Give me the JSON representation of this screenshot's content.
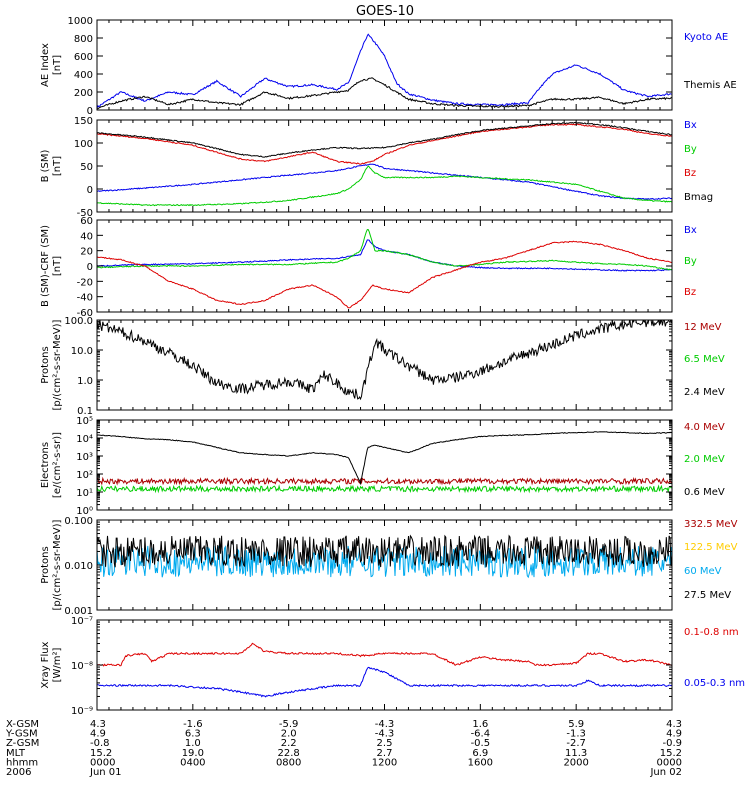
{
  "title": "GOES-10",
  "chart_data": [
    {
      "type": "line",
      "ylabel_lines": [
        "AE Index",
        "[nT]"
      ],
      "ylim": [
        0,
        1000
      ],
      "scale": "linear",
      "yticks": [
        0,
        200,
        400,
        600,
        800,
        1000
      ],
      "ytick_labels": [
        "0",
        "200",
        "400",
        "600",
        "800",
        "1000"
      ],
      "series": [
        {
          "name": "Kyoto AE",
          "color": "#0000ee",
          "x": [
            0,
            1,
            2,
            3,
            4,
            5,
            6,
            7,
            8,
            9,
            10,
            10.5,
            11,
            11.3,
            11.6,
            12,
            12.5,
            13,
            14,
            15,
            16,
            17,
            18,
            18.5,
            19,
            19.5,
            20,
            21,
            22,
            23,
            24
          ],
          "y": [
            30,
            200,
            100,
            200,
            170,
            320,
            150,
            350,
            260,
            280,
            230,
            300,
            650,
            840,
            750,
            600,
            300,
            180,
            110,
            70,
            60,
            60,
            80,
            250,
            400,
            450,
            500,
            400,
            220,
            150,
            180
          ]
        },
        {
          "name": "Themis AE",
          "color": "#000000",
          "x": [
            0,
            1,
            2,
            3,
            4,
            5,
            6,
            7,
            8,
            9,
            10,
            10.5,
            11,
            11.5,
            12,
            12.5,
            13,
            14,
            15,
            16,
            17,
            18,
            19,
            20,
            21,
            22,
            23,
            24
          ],
          "y": [
            20,
            100,
            150,
            60,
            120,
            80,
            60,
            200,
            130,
            160,
            200,
            220,
            330,
            350,
            280,
            200,
            120,
            70,
            50,
            40,
            40,
            50,
            120,
            120,
            140,
            70,
            120,
            130
          ]
        }
      ]
    },
    {
      "type": "line",
      "ylabel_lines": [
        "B (SM)",
        "[nT]"
      ],
      "ylim": [
        -50,
        150
      ],
      "scale": "linear",
      "yticks": [
        -50,
        0,
        50,
        100,
        150
      ],
      "ytick_labels": [
        "-50",
        "0",
        "50",
        "100",
        "150"
      ],
      "series": [
        {
          "name": "Bx",
          "color": "#0000ee",
          "x": [
            0,
            2,
            4,
            6,
            8,
            10,
            11,
            11.5,
            12,
            13,
            14,
            15,
            16,
            17,
            18,
            19,
            20,
            21,
            22,
            23,
            24
          ],
          "y": [
            -5,
            2,
            10,
            20,
            30,
            40,
            50,
            55,
            45,
            40,
            35,
            30,
            25,
            20,
            15,
            5,
            -5,
            -15,
            -20,
            -22,
            -20
          ]
        },
        {
          "name": "By",
          "color": "#00cc00",
          "x": [
            0,
            2,
            4,
            6,
            8,
            10,
            10.5,
            11,
            11.3,
            11.6,
            12,
            13,
            14,
            15,
            16,
            17,
            18,
            19,
            20,
            21,
            22,
            23,
            24
          ],
          "y": [
            -30,
            -35,
            -35,
            -32,
            -25,
            -10,
            0,
            20,
            50,
            35,
            25,
            25,
            25,
            28,
            25,
            22,
            20,
            15,
            10,
            -5,
            -20,
            -25,
            -28
          ]
        },
        {
          "name": "Bz",
          "color": "#dd0000",
          "x": [
            0,
            2,
            4,
            5,
            6,
            7,
            8,
            9,
            10,
            11,
            11.5,
            12,
            13,
            14,
            15,
            16,
            17,
            18,
            19,
            20,
            21,
            22,
            23,
            24
          ],
          "y": [
            120,
            110,
            95,
            80,
            65,
            60,
            70,
            80,
            60,
            55,
            60,
            75,
            95,
            105,
            115,
            125,
            130,
            135,
            140,
            140,
            135,
            130,
            120,
            115
          ]
        },
        {
          "name": "Bmag",
          "color": "#000000",
          "x": [
            0,
            2,
            4,
            5,
            6,
            7,
            8,
            9,
            10,
            11,
            12,
            13,
            14,
            15,
            16,
            17,
            18,
            19,
            20,
            21,
            22,
            23,
            24
          ],
          "y": [
            122,
            113,
            100,
            88,
            75,
            70,
            78,
            85,
            90,
            88,
            90,
            100,
            108,
            118,
            127,
            132,
            137,
            142,
            144,
            140,
            133,
            125,
            118
          ]
        }
      ]
    },
    {
      "type": "line",
      "ylabel_lines": [
        "B (SM)-CRF (SM)",
        "[nT]"
      ],
      "ylim": [
        -60,
        60
      ],
      "scale": "linear",
      "yticks": [
        -60,
        -40,
        -20,
        0,
        20,
        40,
        60
      ],
      "ytick_labels": [
        "-60",
        "-40",
        "-20",
        "0",
        "20",
        "40",
        "60"
      ],
      "series": [
        {
          "name": "Bx",
          "color": "#0000ee",
          "x": [
            0,
            2,
            4,
            6,
            8,
            10,
            11,
            11.3,
            11.6,
            12,
            13,
            14,
            15,
            16,
            17,
            18,
            19,
            20,
            21,
            22,
            23,
            24
          ],
          "y": [
            0,
            2,
            3,
            5,
            8,
            10,
            15,
            35,
            25,
            20,
            15,
            5,
            0,
            -2,
            -3,
            -3,
            -3,
            -4,
            -5,
            -6,
            -6,
            -5
          ]
        },
        {
          "name": "By",
          "color": "#00cc00",
          "x": [
            0,
            2,
            4,
            6,
            8,
            10,
            10.5,
            11,
            11.3,
            11.6,
            12,
            13,
            14,
            15,
            16,
            17,
            18,
            19,
            20,
            21,
            22,
            23,
            24
          ],
          "y": [
            -2,
            0,
            0,
            2,
            2,
            5,
            10,
            20,
            50,
            20,
            20,
            15,
            5,
            0,
            2,
            5,
            6,
            7,
            5,
            3,
            2,
            0,
            -5
          ]
        },
        {
          "name": "Bz",
          "color": "#dd0000",
          "x": [
            0,
            1,
            2,
            3,
            4,
            5,
            6,
            7,
            8,
            9,
            10,
            10.5,
            11,
            11.5,
            12,
            13,
            14,
            15,
            16,
            17,
            18,
            19,
            20,
            21,
            22,
            23,
            24
          ],
          "y": [
            12,
            8,
            0,
            -20,
            -30,
            -45,
            -50,
            -45,
            -30,
            -25,
            -40,
            -55,
            -45,
            -25,
            -30,
            -35,
            -15,
            -5,
            5,
            10,
            20,
            30,
            32,
            28,
            20,
            10,
            5
          ]
        }
      ]
    },
    {
      "type": "line",
      "ylabel_lines": [
        "Protons",
        "[p/(cm²-s-sr-MeV)]"
      ],
      "ylim": [
        0.1,
        100
      ],
      "scale": "log",
      "yticks": [
        0.1,
        1,
        10,
        100
      ],
      "ytick_labels": [
        "0.1",
        "1.0",
        "10.0",
        "100.0"
      ],
      "series": [
        {
          "name": "12 MeV",
          "color": "#aa0000",
          "x": [],
          "y": []
        },
        {
          "name": "6.5 MeV",
          "color": "#00cc00",
          "x": [],
          "y": []
        },
        {
          "name": "2.4 MeV",
          "color": "#000000",
          "x": [
            0,
            1,
            2,
            3,
            4,
            5,
            6,
            7,
            8,
            9,
            9.5,
            10,
            10.5,
            11,
            11.3,
            11.6,
            12,
            13,
            14,
            15,
            16,
            17,
            18,
            19,
            20,
            21,
            22,
            23,
            24
          ],
          "y": [
            70,
            40,
            20,
            8,
            3,
            0.8,
            0.5,
            0.7,
            0.9,
            0.5,
            1.5,
            0.8,
            0.4,
            0.3,
            2,
            20,
            10,
            3,
            1,
            1.2,
            2,
            4,
            8,
            15,
            30,
            50,
            70,
            90,
            80
          ]
        }
      ]
    },
    {
      "type": "line",
      "ylabel_lines": [
        "Electrons",
        "[e/(cm²-s-sr)]"
      ],
      "ylim": [
        1,
        100000
      ],
      "scale": "log",
      "yticks": [
        1,
        10,
        100,
        1000,
        10000,
        100000
      ],
      "ytick_labels": [
        "10⁰",
        "10¹",
        "10²",
        "10³",
        "10⁴",
        "10⁵"
      ],
      "series": [
        {
          "name": "4.0 MeV",
          "color": "#aa0000",
          "x": [
            0,
            24
          ],
          "y": [
            40,
            40
          ]
        },
        {
          "name": "2.0 MeV",
          "color": "#00cc00",
          "x": [
            0,
            24
          ],
          "y": [
            15,
            15
          ]
        },
        {
          "name": "0.6 MeV",
          "color": "#000000",
          "x": [
            0,
            1,
            2,
            3,
            4,
            5,
            6,
            7,
            8,
            9,
            10,
            10.5,
            11,
            11.3,
            11.6,
            12,
            13,
            14,
            15,
            16,
            17,
            18,
            19,
            20,
            21,
            22,
            23,
            24
          ],
          "y": [
            15000,
            12000,
            9000,
            8000,
            6000,
            3000,
            1500,
            1200,
            1000,
            1500,
            1200,
            800,
            30,
            3000,
            4000,
            3000,
            1500,
            5000,
            8000,
            12000,
            14000,
            15000,
            18000,
            20000,
            22000,
            20000,
            18000,
            20000
          ]
        }
      ]
    },
    {
      "type": "line",
      "ylabel_lines": [
        "Protons",
        "[p/(cm²-s-sr-MeV)]"
      ],
      "ylim": [
        0.001,
        0.1
      ],
      "scale": "log",
      "yticks": [
        0.001,
        0.01,
        0.1
      ],
      "ytick_labels": [
        "0.001",
        "0.010",
        "0.100"
      ],
      "series": [
        {
          "name": "332.5 MeV",
          "color": "#aa0000",
          "x": [],
          "y": []
        },
        {
          "name": "122.5 MeV",
          "color": "#ffcc00",
          "x": [],
          "y": []
        },
        {
          "name": "60 MeV",
          "color": "#00aaee",
          "x": [
            0,
            24
          ],
          "y": [
            0.012,
            0.012
          ]
        },
        {
          "name": "27.5 MeV",
          "color": "#000000",
          "x": [
            0,
            24
          ],
          "y": [
            0.02,
            0.02
          ]
        }
      ]
    },
    {
      "type": "line",
      "ylabel_lines": [
        "Xray Flux",
        "[W/m²]"
      ],
      "ylim": [
        1e-09,
        1e-07
      ],
      "scale": "log",
      "yticks": [
        1e-09,
        1e-08,
        1e-07
      ],
      "ytick_labels": [
        "10⁻⁹",
        "10⁻⁸",
        "10⁻⁷"
      ],
      "series": [
        {
          "name": "0.1-0.8 nm",
          "color": "#dd0000",
          "x": [
            0,
            1,
            1.2,
            2,
            2.3,
            3,
            6,
            6.5,
            7,
            8,
            10,
            11,
            12,
            14,
            15,
            16,
            17,
            18,
            18.3,
            19,
            20,
            20.5,
            21,
            22,
            23,
            24
          ],
          "y": [
            1e-08,
            1e-08,
            1.6e-08,
            1.8e-08,
            1.2e-08,
            1.8e-08,
            1.8e-08,
            3e-08,
            2e-08,
            1.8e-08,
            1.8e-08,
            1.6e-08,
            1.8e-08,
            1.8e-08,
            1e-08,
            1.5e-08,
            1.3e-08,
            1.2e-08,
            1e-08,
            1e-08,
            1.1e-08,
            1.8e-08,
            1.8e-08,
            1.2e-08,
            1.3e-08,
            1e-08
          ]
        },
        {
          "name": "0.05-0.3 nm",
          "color": "#0000ee",
          "x": [
            0,
            3,
            5,
            6,
            7,
            8,
            10,
            11,
            11.3,
            12,
            13,
            15,
            18,
            20,
            20.5,
            21,
            24
          ],
          "y": [
            3.5e-09,
            3.5e-09,
            3e-09,
            2.5e-09,
            2e-09,
            2.5e-09,
            3.5e-09,
            3.5e-09,
            9e-09,
            7e-09,
            3.5e-09,
            3.5e-09,
            3.5e-09,
            3.5e-09,
            4.5e-09,
            3.5e-09,
            3.5e-09
          ]
        }
      ]
    }
  ],
  "x_axis": {
    "ticks": [
      0,
      4,
      8,
      12,
      16,
      20,
      24
    ],
    "minor_ticks_per_major": 8,
    "rows": [
      {
        "label": "X-GSM",
        "values": [
          "4.3",
          "-1.6",
          "-5.9",
          "-4.3",
          "1.6",
          "5.9",
          "4.3"
        ]
      },
      {
        "label": "Y-GSM",
        "values": [
          "4.9",
          "6.3",
          "2.0",
          "-4.3",
          "-6.4",
          "-1.3",
          "4.9"
        ]
      },
      {
        "label": "Z-GSM",
        "values": [
          "-0.8",
          "1.0",
          "2.2",
          "2.5",
          "-0.5",
          "-2.7",
          "-0.9"
        ]
      },
      {
        "label": "MLT",
        "values": [
          "15.2",
          "19.0",
          "22.8",
          "2.7",
          "6.9",
          "11.3",
          "15.2"
        ]
      },
      {
        "label": "hhmm",
        "values": [
          "0000",
          "0400",
          "0800",
          "1200",
          "1600",
          "2000",
          "0000"
        ]
      },
      {
        "label": "2006",
        "values": [
          "Jun 01",
          "",
          "",
          "",
          "",
          "",
          "Jun 02"
        ]
      }
    ]
  }
}
